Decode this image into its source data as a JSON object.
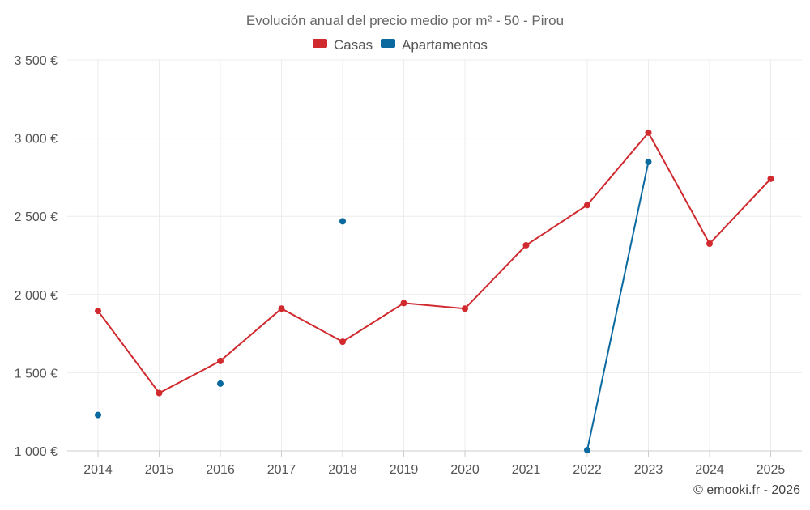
{
  "chart_data": {
    "type": "line",
    "title": "Evolución anual del precio medio por m² - 50 - Pirou",
    "xlabel": "",
    "ylabel": "",
    "categories": [
      "2014",
      "2015",
      "2016",
      "2017",
      "2018",
      "2019",
      "2020",
      "2021",
      "2022",
      "2023",
      "2024",
      "2025"
    ],
    "ylim": [
      1000,
      3500
    ],
    "yticks": [
      1000,
      1500,
      2000,
      2500,
      3000,
      3500
    ],
    "ytick_labels": [
      "1 000 €",
      "1 500 €",
      "2 000 €",
      "2 500 €",
      "3 000 €",
      "3 500 €"
    ],
    "grid": true,
    "legend_position": "top-center",
    "series": [
      {
        "name": "Casas",
        "color": "#d0292e",
        "values": [
          1895,
          1370,
          1575,
          1910,
          1698,
          1945,
          1910,
          2315,
          2572,
          3035,
          2325,
          2740
        ]
      },
      {
        "name": "Apartamentos",
        "color": "#0a6aa0",
        "values": [
          1230,
          null,
          1430,
          null,
          2468,
          null,
          null,
          null,
          1005,
          2848,
          null,
          null
        ]
      }
    ],
    "credit": "© emooki.fr - 2026"
  }
}
